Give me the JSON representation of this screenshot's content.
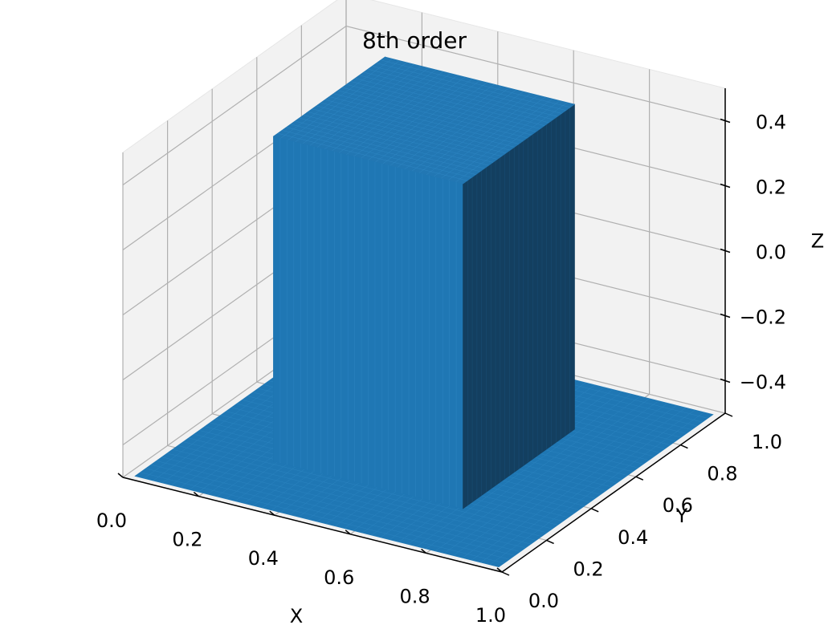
{
  "chart_data": {
    "type": "surface3d",
    "title": "8th order",
    "xlabel": "X",
    "ylabel": "Y",
    "zlabel": "Z",
    "xlim": [
      0.0,
      1.0
    ],
    "ylim": [
      0.0,
      1.0
    ],
    "zlim": [
      -0.5,
      0.5
    ],
    "x_ticks": [
      "0.0",
      "0.2",
      "0.4",
      "0.6",
      "0.8",
      "1.0"
    ],
    "y_ticks": [
      "0.0",
      "0.2",
      "0.4",
      "0.6",
      "0.8",
      "1.0"
    ],
    "z_ticks": [
      "−0.4",
      "−0.2",
      "0.0",
      "0.2",
      "0.4"
    ],
    "x_tick_values": [
      0.0,
      0.2,
      0.4,
      0.6,
      0.8,
      1.0
    ],
    "y_tick_values": [
      0.0,
      0.2,
      0.4,
      0.6,
      0.8,
      1.0
    ],
    "z_tick_values": [
      -0.4,
      -0.2,
      0.0,
      0.2,
      0.4
    ],
    "surface": {
      "description_shape": "square pulse",
      "base_value": -0.5,
      "plateau_value": 0.5,
      "plateau_x_range": [
        0.25,
        0.75
      ],
      "plateau_y_range": [
        0.25,
        0.75
      ]
    },
    "grid": true,
    "colors": {
      "surface": "#1f77b4",
      "surface_dark": "#133f60",
      "pane": "#f2f2f2",
      "pane_grid": "#b0b0b0"
    }
  }
}
